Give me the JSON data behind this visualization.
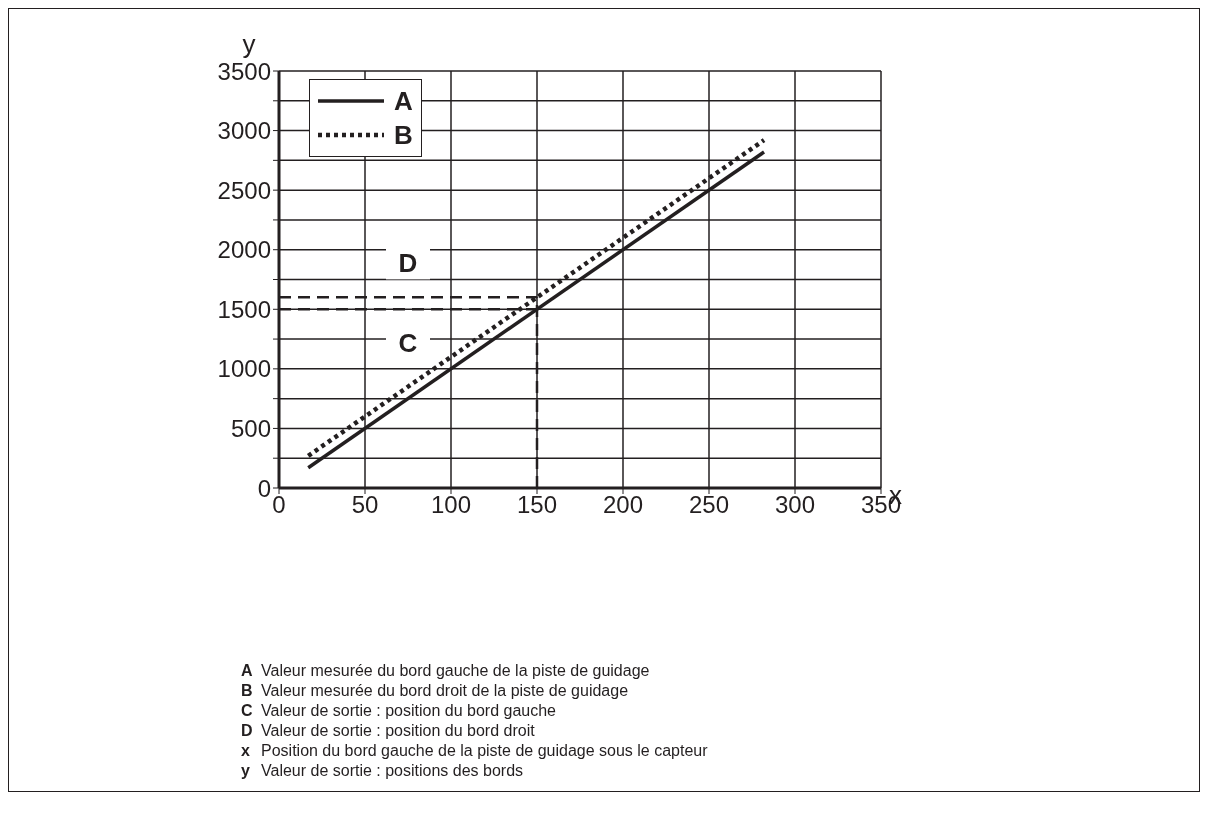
{
  "chart_data": {
    "type": "line",
    "xlabel": "x",
    "ylabel": "y",
    "xlim": [
      0,
      350
    ],
    "xticks": [
      0,
      50,
      100,
      150,
      200,
      250,
      300,
      350
    ],
    "ylim": [
      0,
      3500
    ],
    "yticks": [
      0,
      {
        "value": 250,
        "label": null
      },
      500,
      {
        "value": 750,
        "label": null
      },
      1000,
      {
        "value": 1250,
        "label": null
      },
      1500,
      {
        "value": 1750,
        "label": null
      },
      2000,
      {
        "value": 2250,
        "label": null
      },
      2500,
      {
        "value": 2750,
        "label": null
      },
      3000,
      {
        "value": 3250,
        "label": null
      },
      3500
    ],
    "grid": true,
    "legend": "top left",
    "marker": "none",
    "series": [
      {
        "name": "A",
        "color": "#231f20",
        "line_style": "solid",
        "x": [
          17,
          282
        ],
        "values": [
          170,
          2820
        ]
      },
      {
        "name": "B",
        "color": "#231f20",
        "line_style": "dotted",
        "x": [
          17,
          282
        ],
        "values": [
          270,
          2920
        ]
      },
      {
        "color": "#231f20",
        "line_style": "dashed",
        "x": [
          0,
          150
        ],
        "values": [
          1500,
          1500
        ]
      },
      {
        "color": "#231f20",
        "line_style": "dashed",
        "x": [
          0,
          150
        ],
        "values": [
          1600,
          1600
        ]
      },
      {
        "color": "#231f20",
        "line_style": "dashed",
        "x": [
          150,
          150
        ],
        "values": [
          0,
          1600
        ]
      }
    ],
    "annotations": [
      {
        "text": "C",
        "x": 75,
        "y": 1500
      },
      {
        "text": "D",
        "x": 75,
        "y": 1600
      },
      "A Valeur mesurée du bord gauche de la piste de guidage",
      "B Valeur mesurée du bord droit de la piste de guidage",
      "C Valeur de sortie : position du bord gauche",
      "D Valeur de sortie : position du bord droit",
      "x Position du bord gauche de la piste de guidage sous le capteur",
      "y Valeur de sortie : positions des bords"
    ]
  }
}
